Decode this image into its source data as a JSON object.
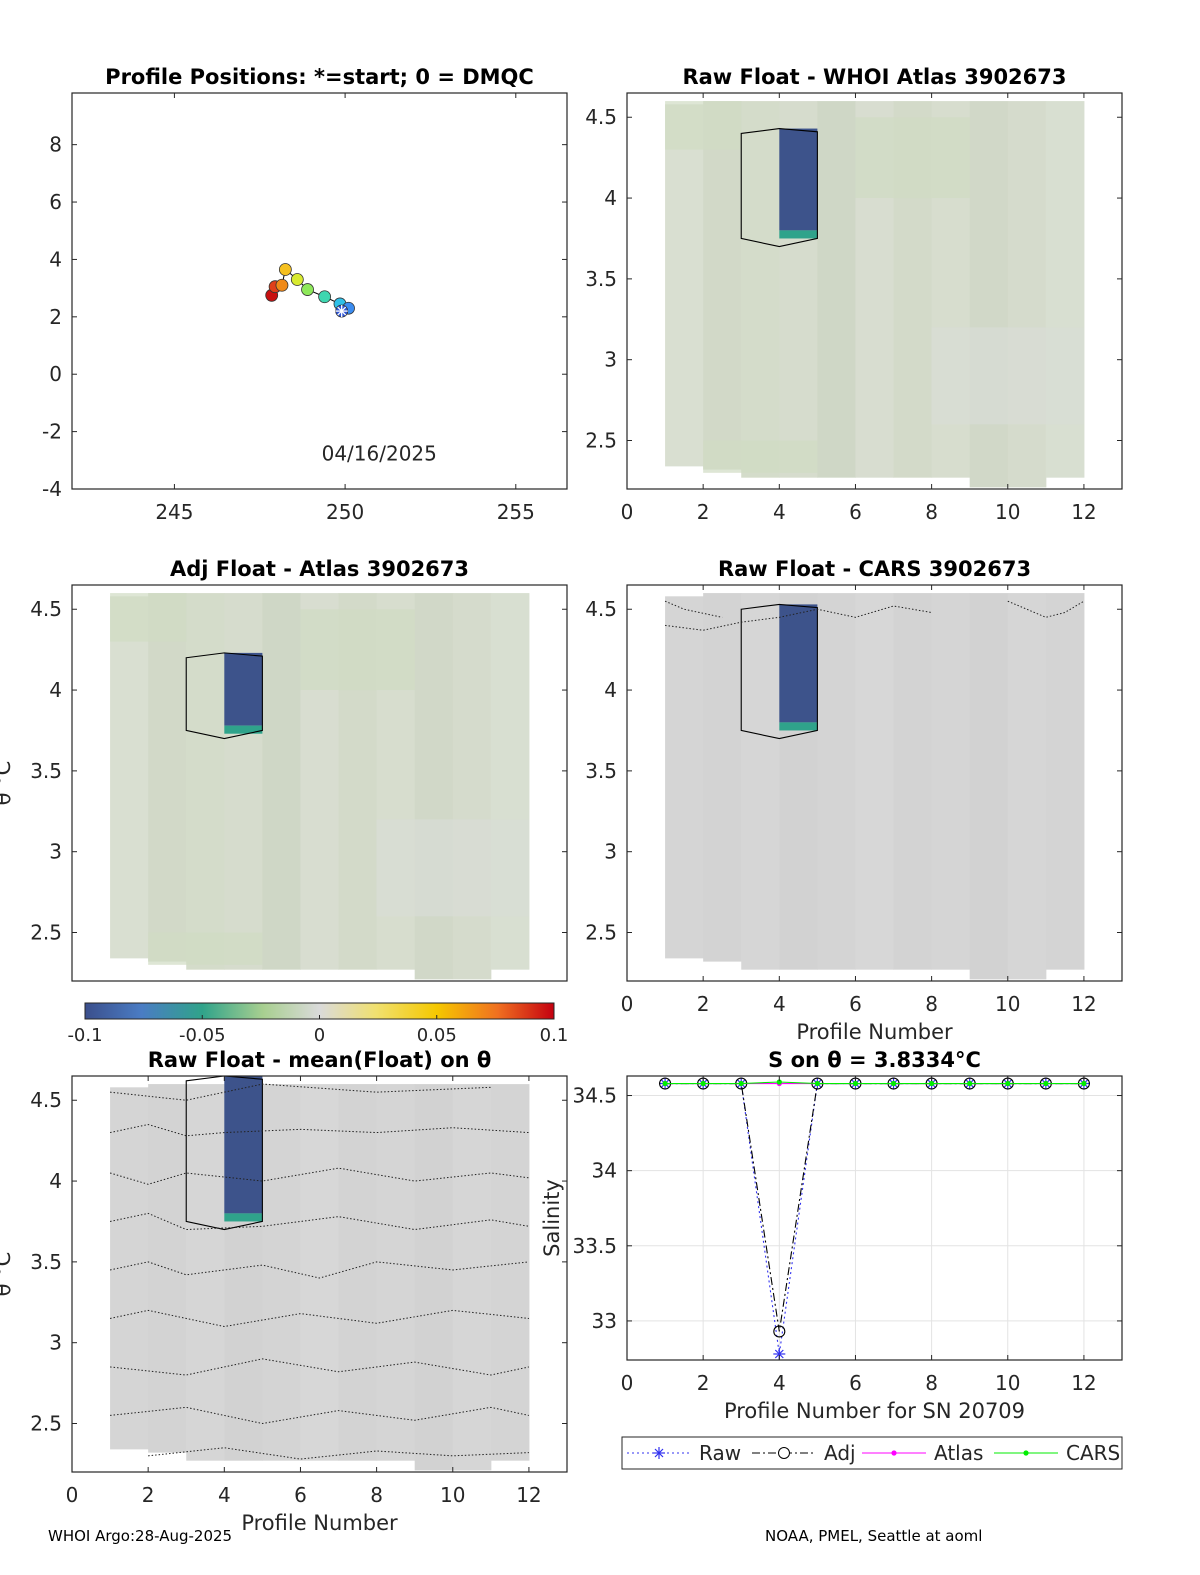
{
  "float_id": "3902673",
  "footer": {
    "left": "WHOI Argo:28-Aug-2025",
    "right": "NOAA, PMEL, Seattle at aoml"
  },
  "colorbar": {
    "min": -0.1,
    "max": 0.1,
    "tick_labels": [
      "-0.1",
      "-0.05",
      "0",
      "0.05",
      "0.1"
    ]
  },
  "chart_data": [
    {
      "id": "positions",
      "type": "scatter",
      "title": "Profile Positions: *=start; 0 = DMQC",
      "xlim": [
        242,
        256.5
      ],
      "ylim": [
        -4,
        9.8
      ],
      "xticks": [
        "245",
        "250",
        "255"
      ],
      "xtick_values": [
        245,
        250,
        255
      ],
      "yticks": [
        "8",
        "6",
        "4",
        "2",
        "0",
        "-2",
        "-4"
      ],
      "ytick_values": [
        8,
        6,
        4,
        2,
        0,
        -2,
        -4
      ],
      "date_label": "04/16/2025",
      "points": [
        {
          "lon": 249.9,
          "lat": 2.2,
          "color": "#2f55d6"
        },
        {
          "lon": 250.1,
          "lat": 2.3,
          "color": "#3b8cf0"
        },
        {
          "lon": 249.85,
          "lat": 2.45,
          "color": "#2fc0e8"
        },
        {
          "lon": 249.4,
          "lat": 2.7,
          "color": "#3ed6b0"
        },
        {
          "lon": 248.9,
          "lat": 2.95,
          "color": "#8ee85a"
        },
        {
          "lon": 248.6,
          "lat": 3.3,
          "color": "#d8ea30"
        },
        {
          "lon": 248.25,
          "lat": 3.65,
          "color": "#f5c020"
        },
        {
          "lon": 248.15,
          "lat": 3.1,
          "color": "#f08a18"
        },
        {
          "lon": 247.95,
          "lat": 3.05,
          "color": "#e0401a"
        },
        {
          "lon": 247.85,
          "lat": 2.75,
          "color": "#c81010"
        }
      ],
      "start_marker": {
        "lon": 249.9,
        "lat": 2.2
      }
    },
    {
      "id": "raw-atlas",
      "type": "heatmap",
      "title": "Raw Float - WHOI Atlas  3902673",
      "xlim": [
        0,
        13
      ],
      "ylim": [
        2.2,
        4.65
      ],
      "xticks": [
        "0",
        "2",
        "4",
        "6",
        "8",
        "10",
        "12"
      ],
      "yticks": [
        "4.5",
        "4",
        "3.5",
        "3",
        "2.5"
      ],
      "field_color": "#d4dccd",
      "anomaly_cells": [
        {
          "x0": 4,
          "x1": 5,
          "y0": 3.8,
          "y1": 4.43,
          "value": -0.1
        },
        {
          "x0": 4,
          "x1": 5,
          "y0": 3.75,
          "y1": 3.8,
          "value": -0.05
        }
      ]
    },
    {
      "id": "adj-atlas",
      "type": "heatmap",
      "title": "Adj Float - Atlas  3902673",
      "ylabel": "θ °C",
      "xlim": [
        0,
        13
      ],
      "ylim": [
        2.2,
        4.65
      ],
      "xticks": [],
      "yticks": [
        "4.5",
        "4",
        "3.5",
        "3",
        "2.5"
      ],
      "field_color": "#d6dccd",
      "anomaly_cells": [
        {
          "x0": 4,
          "x1": 5,
          "y0": 3.78,
          "y1": 4.23,
          "value": -0.1
        },
        {
          "x0": 4,
          "x1": 5,
          "y0": 3.73,
          "y1": 3.78,
          "value": -0.05
        }
      ]
    },
    {
      "id": "raw-cars",
      "type": "heatmap",
      "title": "Raw Float - CARS  3902673",
      "xlabel": "Profile Number",
      "xlim": [
        0,
        13
      ],
      "ylim": [
        2.2,
        4.65
      ],
      "xticks": [
        "0",
        "2",
        "4",
        "6",
        "8",
        "10",
        "12"
      ],
      "yticks": [
        "4.5",
        "4",
        "3.5",
        "3",
        "2.5"
      ],
      "field_color": "#d5d5d5",
      "anomaly_cells": [
        {
          "x0": 4,
          "x1": 5,
          "y0": 3.8,
          "y1": 4.53,
          "value": -0.1
        },
        {
          "x0": 4,
          "x1": 5,
          "y0": 3.75,
          "y1": 3.8,
          "value": -0.05
        }
      ]
    },
    {
      "id": "raw-mean",
      "type": "heatmap",
      "title": "Raw Float - mean(Float) on θ",
      "xlabel": "Profile Number",
      "ylabel": "θ °C",
      "xlim": [
        0,
        13
      ],
      "ylim": [
        2.2,
        4.65
      ],
      "xticks": [
        "0",
        "2",
        "4",
        "6",
        "8",
        "10",
        "12"
      ],
      "yticks": [
        "4.5",
        "4",
        "3.5",
        "3",
        "2.5"
      ],
      "field_color": "#d4d4d4",
      "anomaly_cells": [
        {
          "x0": 4,
          "x1": 5,
          "y0": 3.8,
          "y1": 4.65,
          "value": -0.1
        },
        {
          "x0": 4,
          "x1": 5,
          "y0": 3.75,
          "y1": 3.8,
          "value": -0.05
        }
      ]
    },
    {
      "id": "salinity",
      "type": "line",
      "title": "S on θ = 3.8334°C",
      "xlabel": "Profile Number for SN 20709",
      "ylabel": "Salinity",
      "xlim": [
        0,
        13
      ],
      "ylim": [
        32.74,
        34.63
      ],
      "xticks": [
        "0",
        "2",
        "4",
        "6",
        "8",
        "10",
        "12"
      ],
      "yticks": [
        "34.5",
        "34",
        "33.5",
        "33"
      ],
      "x": [
        1,
        2,
        3,
        4,
        5,
        6,
        7,
        8,
        9,
        10,
        11,
        12
      ],
      "series": [
        {
          "name": "Raw",
          "color": "#3030f0",
          "values": [
            34.58,
            34.58,
            34.58,
            32.78,
            34.58,
            34.58,
            34.58,
            34.58,
            34.58,
            34.58,
            34.58,
            34.58
          ]
        },
        {
          "name": "Adj",
          "color": "#000000",
          "values": [
            34.58,
            34.58,
            34.58,
            32.93,
            34.58,
            34.58,
            34.58,
            34.58,
            34.58,
            34.58,
            34.58,
            34.58
          ]
        },
        {
          "name": "Atlas",
          "color": "#ff00ff",
          "values": [
            34.58,
            34.58,
            34.58,
            34.58,
            34.58,
            34.58,
            34.58,
            34.58,
            34.58,
            34.58,
            34.58,
            34.58
          ]
        },
        {
          "name": "CARS",
          "color": "#00ee00",
          "values": [
            34.58,
            34.58,
            34.58,
            34.59,
            34.58,
            34.58,
            34.58,
            34.58,
            34.58,
            34.58,
            34.58,
            34.58
          ]
        }
      ]
    }
  ]
}
